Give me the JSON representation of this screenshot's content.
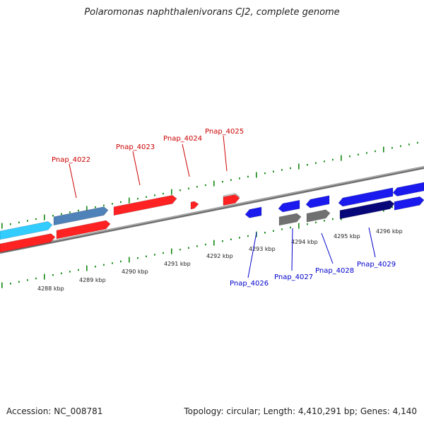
{
  "header": {
    "title": "Polaromonas naphthalenivorans CJ2, complete genome"
  },
  "footer": {
    "accession": "Accession: NC_008781",
    "summary": "Topology: circular; Length: 4,410,291 bp; Genes: 4,140"
  },
  "colors": {
    "axis": "#8a8a8a",
    "tick": "#118811",
    "label_top": "#cc0000",
    "label_bottom": "#0000cc",
    "red": "#ff2222",
    "blue": "#1a1aee",
    "navy": "#07077a",
    "cyan": "#33ccff",
    "steel": "#4f82b8",
    "grey_dark": "#707070",
    "grey_light": "#cfcfcf"
  },
  "scale": {
    "labels": [
      "4288 kbp",
      "4289 kbp",
      "4290 kbp",
      "4291 kbp",
      "4292 kbp",
      "4293 kbp",
      "4294 kbp",
      "4295 kbp",
      "4296 kbp"
    ]
  },
  "gene_labels": {
    "top": [
      "Pnap_4022",
      "Pnap_4023",
      "Pnap_4024",
      "Pnap_4025"
    ],
    "bottom": [
      "Pnap_4026",
      "Pnap_4027",
      "Pnap_4028",
      "Pnap_4029"
    ]
  }
}
